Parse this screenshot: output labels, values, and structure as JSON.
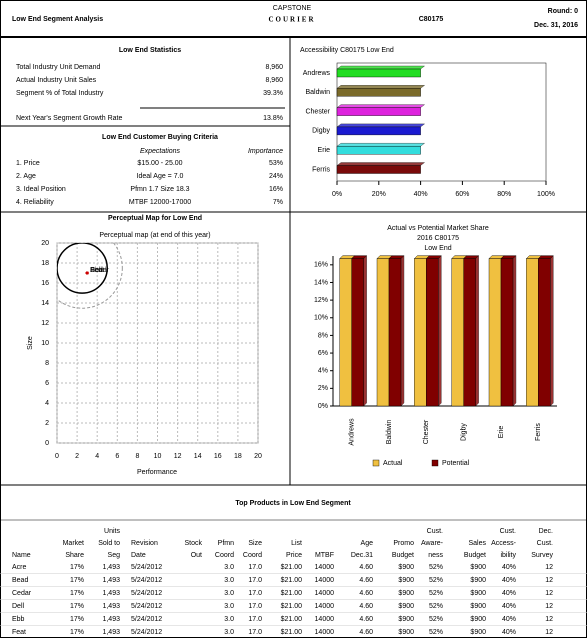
{
  "header": {
    "title": "Low End Segment Analysis",
    "logo_top": "CAPSTONE",
    "logo": "COURIER",
    "company": "C80175",
    "round": "Round: 0",
    "date": "Dec. 31, 2016"
  },
  "statistics": {
    "title": "Low End Statistics",
    "rows": [
      [
        "Total Industry Unit Demand",
        "8,960"
      ],
      [
        "Actual Industry Unit Sales",
        "8,960"
      ],
      [
        "Segment % of Total Industry",
        "39.3%"
      ],
      [
        "Next Year's Segment Growth Rate",
        "13.8%"
      ]
    ]
  },
  "criteria": {
    "title": "Low End Customer Buying Criteria",
    "headers": [
      "Expectations",
      "Importance"
    ],
    "rows": [
      [
        "1. Price",
        "$15.00 - 25.00",
        "53%"
      ],
      [
        "2. Age",
        "Ideal Age = 7.0",
        "24%"
      ],
      [
        "3. Ideal Position",
        "Pfmn 1.7 Size 18.3",
        "16%"
      ],
      [
        "4. Reliability",
        "MTBF 12000-17000",
        "7%"
      ]
    ]
  },
  "accessibility": {
    "type": "bar",
    "title": "Accessibility C80175 Low End",
    "categories": [
      "Andrews",
      "Baldwin",
      "Chester",
      "Digby",
      "Erie",
      "Ferris"
    ],
    "values": [
      40,
      40,
      40,
      40,
      40,
      40
    ],
    "colors": [
      "#22dd22",
      "#7a6a2a",
      "#dd22dd",
      "#1a1ad0",
      "#33dddd",
      "#7a0a0a"
    ],
    "xlim": [
      0,
      100
    ],
    "xticks": [
      {
        "value": 0,
        "label": "0%"
      },
      {
        "value": 20,
        "label": "20%"
      },
      {
        "value": 40,
        "label": "40%"
      },
      {
        "value": 60,
        "label": "60%"
      },
      {
        "value": 80,
        "label": "80%"
      },
      {
        "value": 100,
        "label": "100%"
      }
    ]
  },
  "perceptual_map": {
    "type": "scatter",
    "title": "Perceptual Map for Low End",
    "subtitle": "Perceptual map (at end of this year)",
    "x_label": "Performance",
    "y_label": "Size",
    "xlim": [
      0,
      20
    ],
    "ylim": [
      0,
      20
    ],
    "xticks": [
      0,
      2,
      4,
      6,
      8,
      10,
      12,
      14,
      16,
      18,
      20
    ],
    "yticks": [
      0,
      2,
      4,
      6,
      8,
      10,
      12,
      14,
      16,
      18,
      20
    ],
    "grid": true,
    "color": "#cc0000",
    "points": [
      {
        "name": "Acre",
        "x": 3.0,
        "y": 17.0
      },
      {
        "name": "Bead",
        "x": 3.0,
        "y": 17.0
      },
      {
        "name": "Cedar",
        "x": 3.0,
        "y": 17.0
      },
      {
        "name": "Dell",
        "x": 3.0,
        "y": 17.0
      },
      {
        "name": "Ebb",
        "x": 3.0,
        "y": 17.0
      },
      {
        "name": "Feat",
        "x": 3.0,
        "y": 17.0
      }
    ],
    "circles": [
      {
        "x": 2.5,
        "y": 17.5,
        "r": 2.5,
        "style": "solid"
      },
      {
        "x": 2.5,
        "y": 17.5,
        "r": 4,
        "style": "dashed"
      }
    ]
  },
  "market_share": {
    "type": "bar",
    "title": [
      "Actual vs Potential Market Share",
      "2016 C80175",
      "Low End"
    ],
    "categories": [
      "Andrews",
      "Baldwin",
      "Chester",
      "Digby",
      "Erie",
      "Ferris"
    ],
    "ylim": [
      0,
      17
    ],
    "yticks": [
      {
        "value": 0,
        "label": "0%"
      },
      {
        "value": 2,
        "label": "2%"
      },
      {
        "value": 4,
        "label": "4%"
      },
      {
        "value": 6,
        "label": "6%"
      },
      {
        "value": 8,
        "label": "8%"
      },
      {
        "value": 10,
        "label": "10%"
      },
      {
        "value": 12,
        "label": "12%"
      },
      {
        "value": 14,
        "label": "14%"
      },
      {
        "value": 16,
        "label": "16%"
      }
    ],
    "series": [
      {
        "name": "Actual",
        "color": "#f0c040",
        "values": [
          16.7,
          16.7,
          16.7,
          16.7,
          16.7,
          16.7
        ]
      },
      {
        "name": "Potential",
        "color": "#800000",
        "values": [
          16.7,
          16.7,
          16.7,
          16.7,
          16.7,
          16.7
        ]
      }
    ]
  },
  "table": {
    "title": "Top Products in Low End Segment",
    "headers": [
      [
        "Name"
      ],
      [
        "Market",
        "Share"
      ],
      [
        "Units",
        "Sold to",
        "Seg"
      ],
      [
        "Revision",
        "Date"
      ],
      [
        "Stock",
        "Out"
      ],
      [
        "Pfmn",
        "Coord"
      ],
      [
        "Size",
        "Coord"
      ],
      [
        "List",
        "Price"
      ],
      [
        "MTBF"
      ],
      [
        "Age",
        "Dec.31"
      ],
      [
        "Promo",
        "Budget"
      ],
      [
        "Cust.",
        "Aware-",
        "ness"
      ],
      [
        "Sales",
        "Budget"
      ],
      [
        "Cust.",
        "Access-",
        "ibility"
      ],
      [
        "Dec.",
        "Cust.",
        "Survey"
      ]
    ],
    "rows": [
      [
        "Acre",
        "17%",
        "1,493",
        "5/24/2012",
        null,
        "3.0",
        "17.0",
        "$21.00",
        "14000",
        "4.60",
        "$900",
        "52%",
        "$900",
        "40%",
        "12"
      ],
      [
        "Bead",
        "17%",
        "1,493",
        "5/24/2012",
        null,
        "3.0",
        "17.0",
        "$21.00",
        "14000",
        "4.60",
        "$900",
        "52%",
        "$900",
        "40%",
        "12"
      ],
      [
        "Cedar",
        "17%",
        "1,493",
        "5/24/2012",
        null,
        "3.0",
        "17.0",
        "$21.00",
        "14000",
        "4.60",
        "$900",
        "52%",
        "$900",
        "40%",
        "12"
      ],
      [
        "Dell",
        "17%",
        "1,493",
        "5/24/2012",
        null,
        "3.0",
        "17.0",
        "$21.00",
        "14000",
        "4.60",
        "$900",
        "52%",
        "$900",
        "40%",
        "12"
      ],
      [
        "Ebb",
        "17%",
        "1,493",
        "5/24/2012",
        null,
        "3.0",
        "17.0",
        "$21.00",
        "14000",
        "4.60",
        "$900",
        "52%",
        "$900",
        "40%",
        "12"
      ],
      [
        "Feat",
        "17%",
        "1,493",
        "5/24/2012",
        null,
        "3.0",
        "17.0",
        "$21.00",
        "14000",
        "4.60",
        "$900",
        "52%",
        "$900",
        "40%",
        "12"
      ]
    ]
  }
}
